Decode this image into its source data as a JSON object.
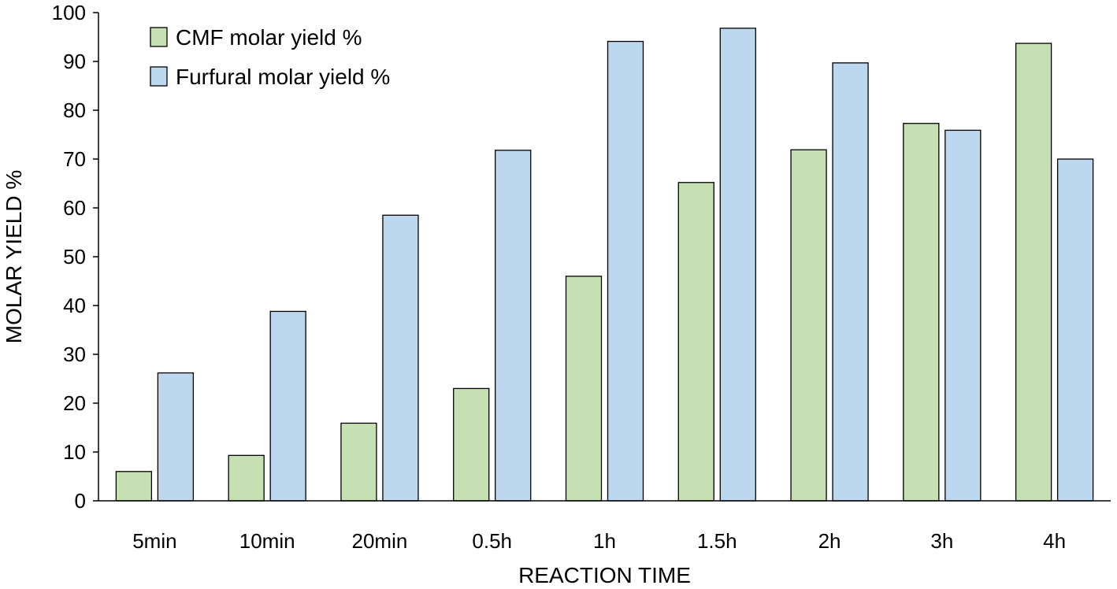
{
  "chart_data": {
    "type": "bar",
    "title": "",
    "xlabel": "REACTION TIME",
    "ylabel": "MOLAR YIELD %",
    "ylim": [
      0,
      100
    ],
    "yticks": [
      0,
      10,
      20,
      30,
      40,
      50,
      60,
      70,
      80,
      90,
      100
    ],
    "grid": false,
    "legend_position": "top-left",
    "categories": [
      "5min",
      "10min",
      "20min",
      "0.5h",
      "1h",
      "1.5h",
      "2h",
      "3h",
      "4h"
    ],
    "series": [
      {
        "name": "CMF molar yield %",
        "color": "#c6e0b4",
        "values": [
          6,
          9.3,
          15.9,
          23,
          46,
          65.2,
          71.9,
          77.3,
          93.7
        ]
      },
      {
        "name": "Furfural molar yield %",
        "color": "#bdd7ee",
        "values": [
          26.2,
          38.8,
          58.5,
          71.8,
          94.1,
          96.8,
          89.7,
          75.9,
          70
        ]
      }
    ]
  }
}
